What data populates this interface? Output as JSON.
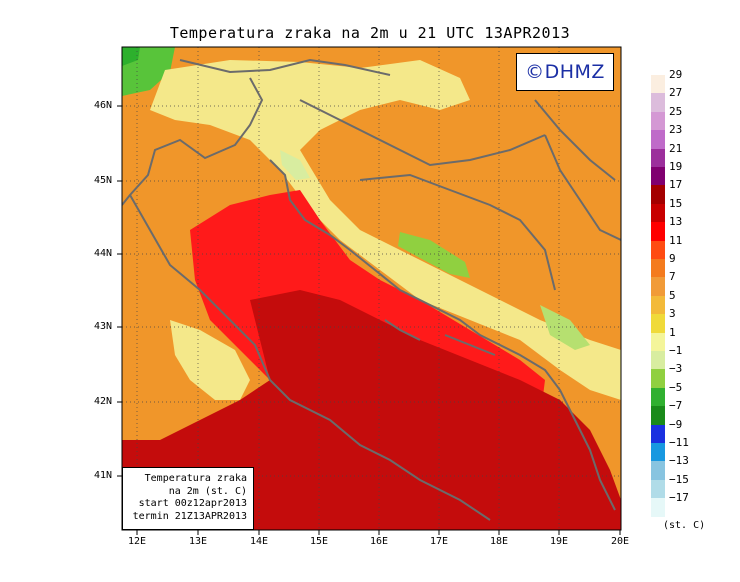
{
  "title": "Temperatura zraka na 2m u 21 UTC 13APR2013",
  "logo": "©DHMZ",
  "info_box": [
    "Temperatura zraka",
    "na 2m (st. C)",
    "start 00z12apr2013",
    "termin 21Z13APR2013"
  ],
  "lat_labels": [
    "46N",
    "45N",
    "44N",
    "43N",
    "42N",
    "41N"
  ],
  "lon_labels": [
    "12E",
    "13E",
    "14E",
    "15E",
    "16E",
    "17E",
    "18E",
    "19E",
    "20E"
  ],
  "legend": {
    "unit": "(st. C)",
    "labels": [
      "29",
      "27",
      "25",
      "23",
      "21",
      "19",
      "17",
      "15",
      "13",
      "11",
      "9",
      "7",
      "5",
      "3",
      "1",
      "−1",
      "−3",
      "−5",
      "−7",
      "−9",
      "−11",
      "−13",
      "−15",
      "−17"
    ],
    "colors": [
      "#fbeee0",
      "#dcbcdc",
      "#d498d4",
      "#bf6bc9",
      "#9c2f9c",
      "#800070",
      "#a40000",
      "#c80000",
      "#ff0000",
      "#ff4c12",
      "#f47b1e",
      "#f19b38",
      "#f3ba3a",
      "#f0da3a",
      "#f4f59a",
      "#d8eda0",
      "#90d040",
      "#30b030",
      "#1a8a1a",
      "#1a30e0",
      "#1898e0",
      "#88c4e0",
      "#b0dce8",
      "#e6f8f8"
    ]
  },
  "colors": {
    "land_yellow": "#f4e88a",
    "land_orange": "#f0962a",
    "sea_red": "#ff1a1a",
    "sea_darkred": "#c40c0c",
    "coast": "#6b6b6b"
  }
}
